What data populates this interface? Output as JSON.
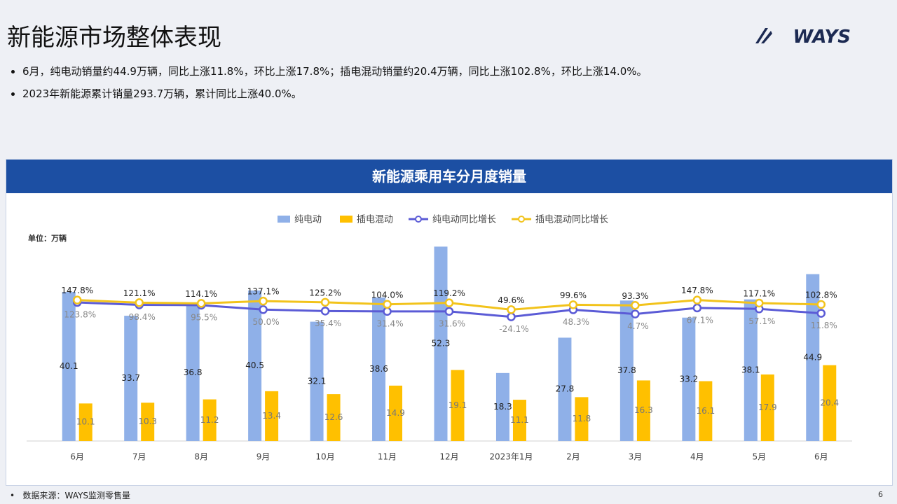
{
  "header": {
    "title": "新能源市场整体表现",
    "logo": "WAYS",
    "bullets": [
      "6月，纯电动销量约44.9万辆，同比上涨11.8%，环比上涨17.8%；插电混动销量约20.4万辆，同比上涨102.8%，环比上涨14.0%。",
      "2023年新能源累计销量293.7万辆，累计同比上涨40.0%。"
    ]
  },
  "chart_data": {
    "type": "bar-line",
    "title": "新能源乘用车分月度销量",
    "unit": "单位：万辆",
    "categories": [
      "6月",
      "7月",
      "8月",
      "9月",
      "10月",
      "11月",
      "12月",
      "2023年1月",
      "2月",
      "3月",
      "4月",
      "5月",
      "6月"
    ],
    "ylim": [
      0,
      55
    ],
    "y2lim": [
      -1300,
      800
    ],
    "legend": "top",
    "series": [
      {
        "name": "纯电动",
        "type": "bar",
        "color": "#8fb0e8",
        "values": [
          40.1,
          33.7,
          36.8,
          40.5,
          32.1,
          38.6,
          52.3,
          18.3,
          27.8,
          37.8,
          33.2,
          38.1,
          44.9
        ]
      },
      {
        "name": "插电混动",
        "type": "bar",
        "color": "#ffc000",
        "values": [
          10.1,
          10.3,
          11.2,
          13.4,
          12.6,
          14.9,
          19.1,
          11.1,
          11.8,
          16.3,
          16.1,
          17.9,
          20.4
        ]
      },
      {
        "name": "纯电动同比增长",
        "type": "line",
        "axis": "y2",
        "color": "#5b5bd6",
        "values": [
          123.8,
          98.4,
          95.5,
          50.0,
          35.4,
          31.4,
          31.6,
          -24.1,
          48.3,
          4.7,
          67.1,
          57.1,
          11.8
        ],
        "value_labels": [
          "123.8%",
          "98.4%",
          "95.5%",
          "50.0%",
          "35.4%",
          "31.4%",
          "31.6%",
          "-24.1%",
          "48.3%",
          "4.7%",
          "67.1%",
          "57.1%",
          "11.8%"
        ]
      },
      {
        "name": "插电混动同比增长",
        "type": "line",
        "axis": "y2",
        "color": "#f2c31b",
        "values": [
          147.8,
          121.1,
          114.1,
          137.1,
          125.2,
          104.0,
          119.2,
          49.6,
          99.6,
          93.3,
          147.8,
          117.1,
          102.8
        ],
        "value_labels": [
          "147.8%",
          "121.1%",
          "114.1%",
          "137.1%",
          "125.2%",
          "104.0%",
          "119.2%",
          "49.6%",
          "99.6%",
          "93.3%",
          "147.8%",
          "117.1%",
          "102.8%"
        ]
      }
    ]
  },
  "footer": {
    "source": "数据来源：WAYS监测零售量",
    "page": "6"
  }
}
